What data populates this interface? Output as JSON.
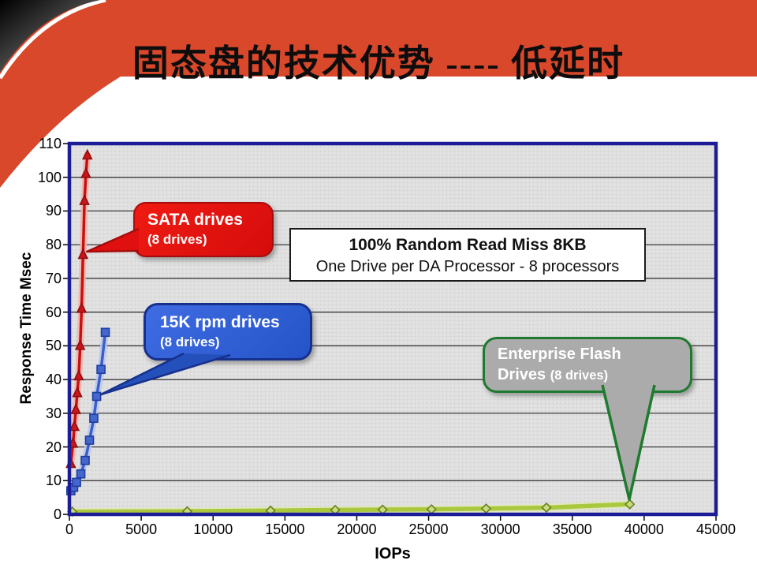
{
  "slide": {
    "title": "固态盘的技术优势  ---- 低延时"
  },
  "infobox": {
    "line1": "100% Random Read Miss 8KB",
    "line2": "One Drive per DA Processor - 8 processors"
  },
  "callouts": {
    "sata": {
      "title": "SATA drives",
      "subtitle": "(8 drives)"
    },
    "rpm15k": {
      "title": "15K rpm drives",
      "subtitle": "(8 drives)"
    },
    "flash": {
      "title": "Enterprise Flash",
      "title2": "Drives",
      "subtitle": "(8 drives)"
    }
  },
  "chart_data": {
    "type": "line",
    "title": "",
    "xlabel": "IOPs",
    "ylabel": "Response Time Msec",
    "xlim": [
      0,
      45000
    ],
    "ylim": [
      0,
      110
    ],
    "xticks": [
      0,
      5000,
      10000,
      15000,
      20000,
      25000,
      30000,
      35000,
      40000,
      45000
    ],
    "yticks": [
      0,
      10,
      20,
      30,
      40,
      50,
      60,
      70,
      80,
      90,
      100,
      110
    ],
    "grid": "horizontal",
    "legend_position": "callout-labels-on-plot",
    "plot_border_color": "#1c1c96",
    "plot_bg_color": "#e1e1e1",
    "series": [
      {
        "id": "sata",
        "name": "SATA drives (8 drives)",
        "color": "#c8100f",
        "glow": "#f2b2ac",
        "width": 3.5,
        "marker": "triangle",
        "marker_fill": "#cc1518",
        "marker_stroke": "#8e0d10",
        "points": [
          [
            100,
            15
          ],
          [
            250,
            21
          ],
          [
            350,
            26
          ],
          [
            450,
            31
          ],
          [
            550,
            36
          ],
          [
            650,
            41
          ],
          [
            750,
            50
          ],
          [
            850,
            61
          ],
          [
            950,
            77
          ],
          [
            1050,
            93
          ],
          [
            1150,
            101
          ],
          [
            1250,
            106.5
          ]
        ]
      },
      {
        "id": "rpm15k",
        "name": "15K rpm drives (8 drives)",
        "color": "#3a5fc8",
        "glow": "#b9c6ec",
        "width": 3.5,
        "marker": "square",
        "marker_fill": "#4467cf",
        "marker_stroke": "#1e3e9e",
        "points": [
          [
            100,
            7
          ],
          [
            300,
            8
          ],
          [
            500,
            9.5
          ],
          [
            800,
            12
          ],
          [
            1100,
            16
          ],
          [
            1400,
            22
          ],
          [
            1700,
            28.5
          ],
          [
            1900,
            35
          ],
          [
            2200,
            43
          ],
          [
            2500,
            54
          ]
        ]
      },
      {
        "id": "flash",
        "name": "Enterprise Flash Drives (8 drives)",
        "color": "#a9c83d",
        "glow": "#dfe9b2",
        "width": 5.5,
        "marker": "diamond",
        "marker_fill": "#c9da7c",
        "marker_stroke": "#66801f",
        "points": [
          [
            200,
            0.8
          ],
          [
            8200,
            0.9
          ],
          [
            14000,
            1.1
          ],
          [
            18500,
            1.3
          ],
          [
            21800,
            1.4
          ],
          [
            25200,
            1.5
          ],
          [
            29000,
            1.7
          ],
          [
            33200,
            2.0
          ],
          [
            39000,
            3.0
          ]
        ]
      }
    ]
  },
  "colors": {
    "header_red": "#d9482b",
    "sata_callout_fill": "#e11010",
    "sata_callout_border": "#a50d0d",
    "rpm15k_callout_fill": "#2e5fd6",
    "rpm15k_callout_border": "#16308c",
    "flash_callout_fill": "#ababab",
    "flash_callout_border": "#1e7a2e",
    "plot_border": "#1c1c96"
  }
}
